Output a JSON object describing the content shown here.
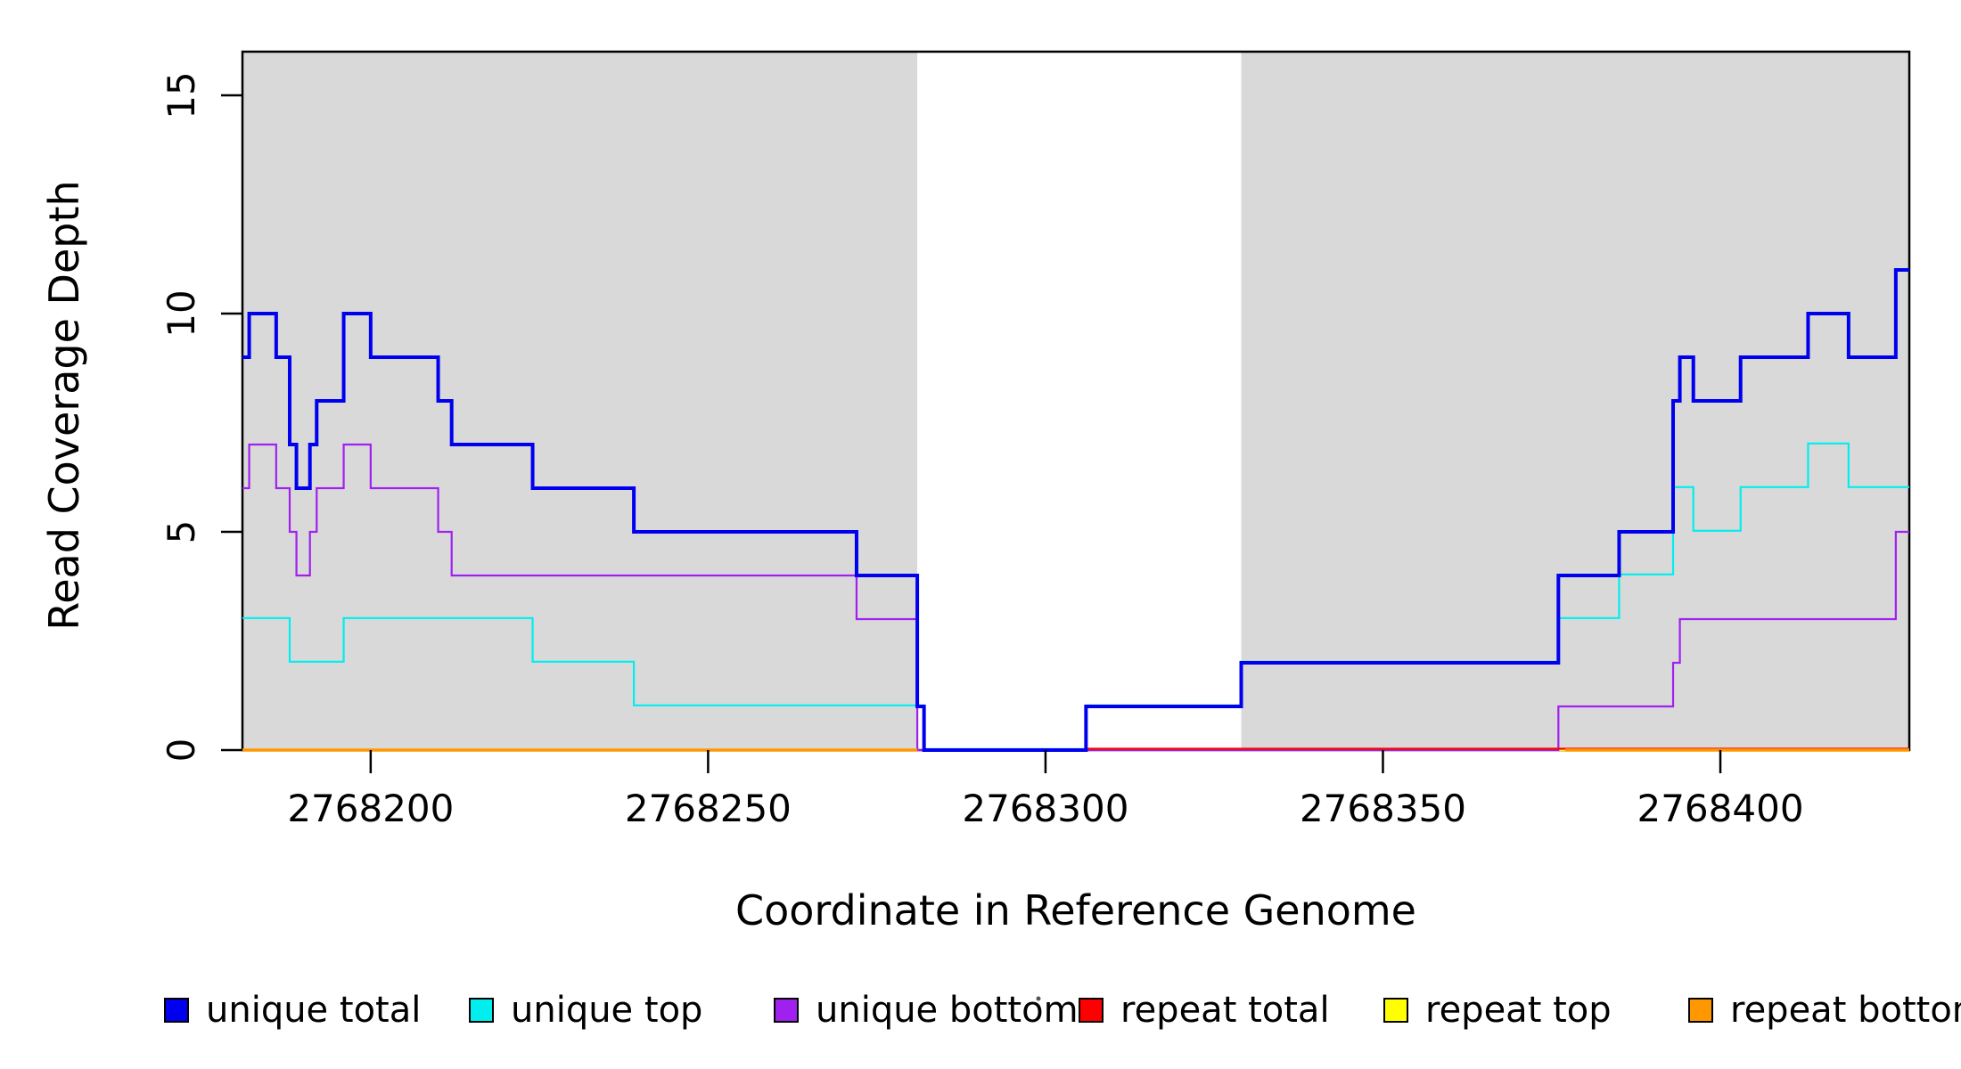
{
  "chart_data": {
    "type": "line",
    "subtype": "step-coverage",
    "title": "",
    "xlabel": "Coordinate in Reference Genome",
    "ylabel": "Read Coverage Depth",
    "xlim": [
      2768181,
      2768428
    ],
    "ylim": [
      0,
      16
    ],
    "x_ticks": [
      2768200,
      2768250,
      2768300,
      2768350,
      2768400
    ],
    "y_ticks": [
      0,
      5,
      10,
      15
    ],
    "grid": false,
    "legend_position": "bottom",
    "plot_background": "#ffffff",
    "band_color": "#d9d9d9",
    "background_bands": [
      {
        "from": 2768181,
        "to": 2768281
      },
      {
        "from": 2768329,
        "to": 2768428
      }
    ],
    "series": [
      {
        "name": "unique total",
        "color": "#0000ee",
        "width": 4,
        "z": 6,
        "dy": 0,
        "steps": [
          [
            2768181,
            2768182,
            9
          ],
          [
            2768182,
            2768186,
            10
          ],
          [
            2768186,
            2768188,
            9
          ],
          [
            2768188,
            2768189,
            7
          ],
          [
            2768189,
            2768191,
            6
          ],
          [
            2768191,
            2768192,
            7
          ],
          [
            2768192,
            2768196,
            8
          ],
          [
            2768196,
            2768200,
            10
          ],
          [
            2768200,
            2768210,
            9
          ],
          [
            2768210,
            2768212,
            8
          ],
          [
            2768212,
            2768224,
            7
          ],
          [
            2768224,
            2768239,
            6
          ],
          [
            2768239,
            2768272,
            5
          ],
          [
            2768272,
            2768281,
            4
          ],
          [
            2768281,
            2768282,
            1
          ],
          [
            2768282,
            2768306,
            0
          ],
          [
            2768306,
            2768329,
            1
          ],
          [
            2768329,
            2768376,
            2
          ],
          [
            2768376,
            2768385,
            4
          ],
          [
            2768385,
            2768393,
            5
          ],
          [
            2768393,
            2768394,
            8
          ],
          [
            2768394,
            2768396,
            9
          ],
          [
            2768396,
            2768403,
            8
          ],
          [
            2768403,
            2768413,
            9
          ],
          [
            2768413,
            2768419,
            10
          ],
          [
            2768419,
            2768426,
            9
          ],
          [
            2768426,
            2768428,
            11
          ]
        ]
      },
      {
        "name": "unique top",
        "color": "#00eeee",
        "width": 2.2,
        "z": 5,
        "dy": -1.2,
        "steps": [
          [
            2768181,
            2768188,
            3
          ],
          [
            2768188,
            2768196,
            2
          ],
          [
            2768196,
            2768224,
            3
          ],
          [
            2768224,
            2768239,
            2
          ],
          [
            2768239,
            2768282,
            1
          ],
          [
            2768282,
            2768306,
            0
          ],
          [
            2768306,
            2768329,
            1
          ],
          [
            2768329,
            2768376,
            2
          ],
          [
            2768376,
            2768385,
            3
          ],
          [
            2768385,
            2768393,
            4
          ],
          [
            2768393,
            2768396,
            6
          ],
          [
            2768396,
            2768403,
            5
          ],
          [
            2768403,
            2768413,
            6
          ],
          [
            2768413,
            2768419,
            7
          ],
          [
            2768419,
            2768428,
            6
          ]
        ]
      },
      {
        "name": "unique bottom",
        "color": "#a020f0",
        "width": 2.2,
        "z": 2,
        "dy": 0,
        "steps": [
          [
            2768181,
            2768182,
            6
          ],
          [
            2768182,
            2768186,
            7
          ],
          [
            2768186,
            2768188,
            6
          ],
          [
            2768188,
            2768189,
            5
          ],
          [
            2768189,
            2768191,
            4
          ],
          [
            2768191,
            2768192,
            5
          ],
          [
            2768192,
            2768196,
            6
          ],
          [
            2768196,
            2768200,
            7
          ],
          [
            2768200,
            2768210,
            6
          ],
          [
            2768210,
            2768212,
            5
          ],
          [
            2768212,
            2768272,
            4
          ],
          [
            2768272,
            2768281,
            3
          ],
          [
            2768281,
            2768376,
            0
          ],
          [
            2768376,
            2768393,
            1
          ],
          [
            2768393,
            2768394,
            2
          ],
          [
            2768394,
            2768426,
            3
          ],
          [
            2768426,
            2768428,
            5
          ]
        ]
      },
      {
        "name": "repeat total",
        "color": "#ff0000",
        "width": 2.2,
        "z": 3,
        "dy": -1.5,
        "steps": [
          [
            2768306,
            2768428,
            0
          ]
        ]
      },
      {
        "name": "repeat top",
        "color": "#ffff00",
        "width": 2.2,
        "z": 1,
        "dy": 0,
        "steps": [
          [
            2768181,
            2768281,
            0
          ],
          [
            2768306,
            2768428,
            0
          ]
        ]
      },
      {
        "name": "repeat bottom",
        "color": "#ff9800",
        "width": 3.5,
        "z": 4,
        "dy": 0,
        "steps": [
          [
            2768181,
            2768281,
            0
          ],
          [
            2768377,
            2768428,
            0
          ]
        ]
      }
    ]
  }
}
